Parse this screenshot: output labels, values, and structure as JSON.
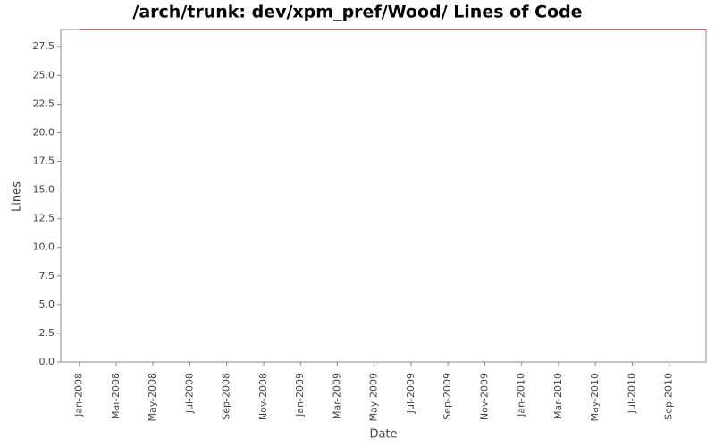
{
  "chart_data": {
    "type": "line",
    "title": "/arch/trunk: dev/xpm_pref/Wood/ Lines of Code",
    "x_label": "Date",
    "y_label": "Lines",
    "x": [
      "2008-01",
      "2010-11"
    ],
    "series": [
      {
        "name": "Lines",
        "color": "#8b1a1a",
        "values": [
          29,
          29
        ]
      }
    ],
    "xlim": [
      "2007-12",
      "2010-11"
    ],
    "xticks": [
      {
        "value": "2008-01",
        "label": "Jan-2008"
      },
      {
        "value": "2008-03",
        "label": "Mar-2008"
      },
      {
        "value": "2008-05",
        "label": "May-2008"
      },
      {
        "value": "2008-07",
        "label": "Jul-2008"
      },
      {
        "value": "2008-09",
        "label": "Sep-2008"
      },
      {
        "value": "2008-11",
        "label": "Nov-2008"
      },
      {
        "value": "2009-01",
        "label": "Jan-2009"
      },
      {
        "value": "2009-03",
        "label": "Mar-2009"
      },
      {
        "value": "2009-05",
        "label": "May-2009"
      },
      {
        "value": "2009-07",
        "label": "Jul-2009"
      },
      {
        "value": "2009-09",
        "label": "Sep-2009"
      },
      {
        "value": "2009-11",
        "label": "Nov-2009"
      },
      {
        "value": "2010-01",
        "label": "Jan-2010"
      },
      {
        "value": "2010-03",
        "label": "Mar-2010"
      },
      {
        "value": "2010-05",
        "label": "May-2010"
      },
      {
        "value": "2010-07",
        "label": "Jul-2010"
      },
      {
        "value": "2010-09",
        "label": "Sep-2010"
      }
    ],
    "ylim": [
      0,
      29
    ],
    "yticks": [
      {
        "value": 0,
        "label": "0.0"
      },
      {
        "value": 2.5,
        "label": "2.5"
      },
      {
        "value": 5,
        "label": "5.0"
      },
      {
        "value": 7.5,
        "label": "7.5"
      },
      {
        "value": 10,
        "label": "10.0"
      },
      {
        "value": 12.5,
        "label": "12.5"
      },
      {
        "value": 15,
        "label": "15.0"
      },
      {
        "value": 17.5,
        "label": "17.5"
      },
      {
        "value": 20,
        "label": "20.0"
      },
      {
        "value": 22.5,
        "label": "22.5"
      },
      {
        "value": 25,
        "label": "25.0"
      },
      {
        "value": 27.5,
        "label": "27.5"
      }
    ]
  }
}
